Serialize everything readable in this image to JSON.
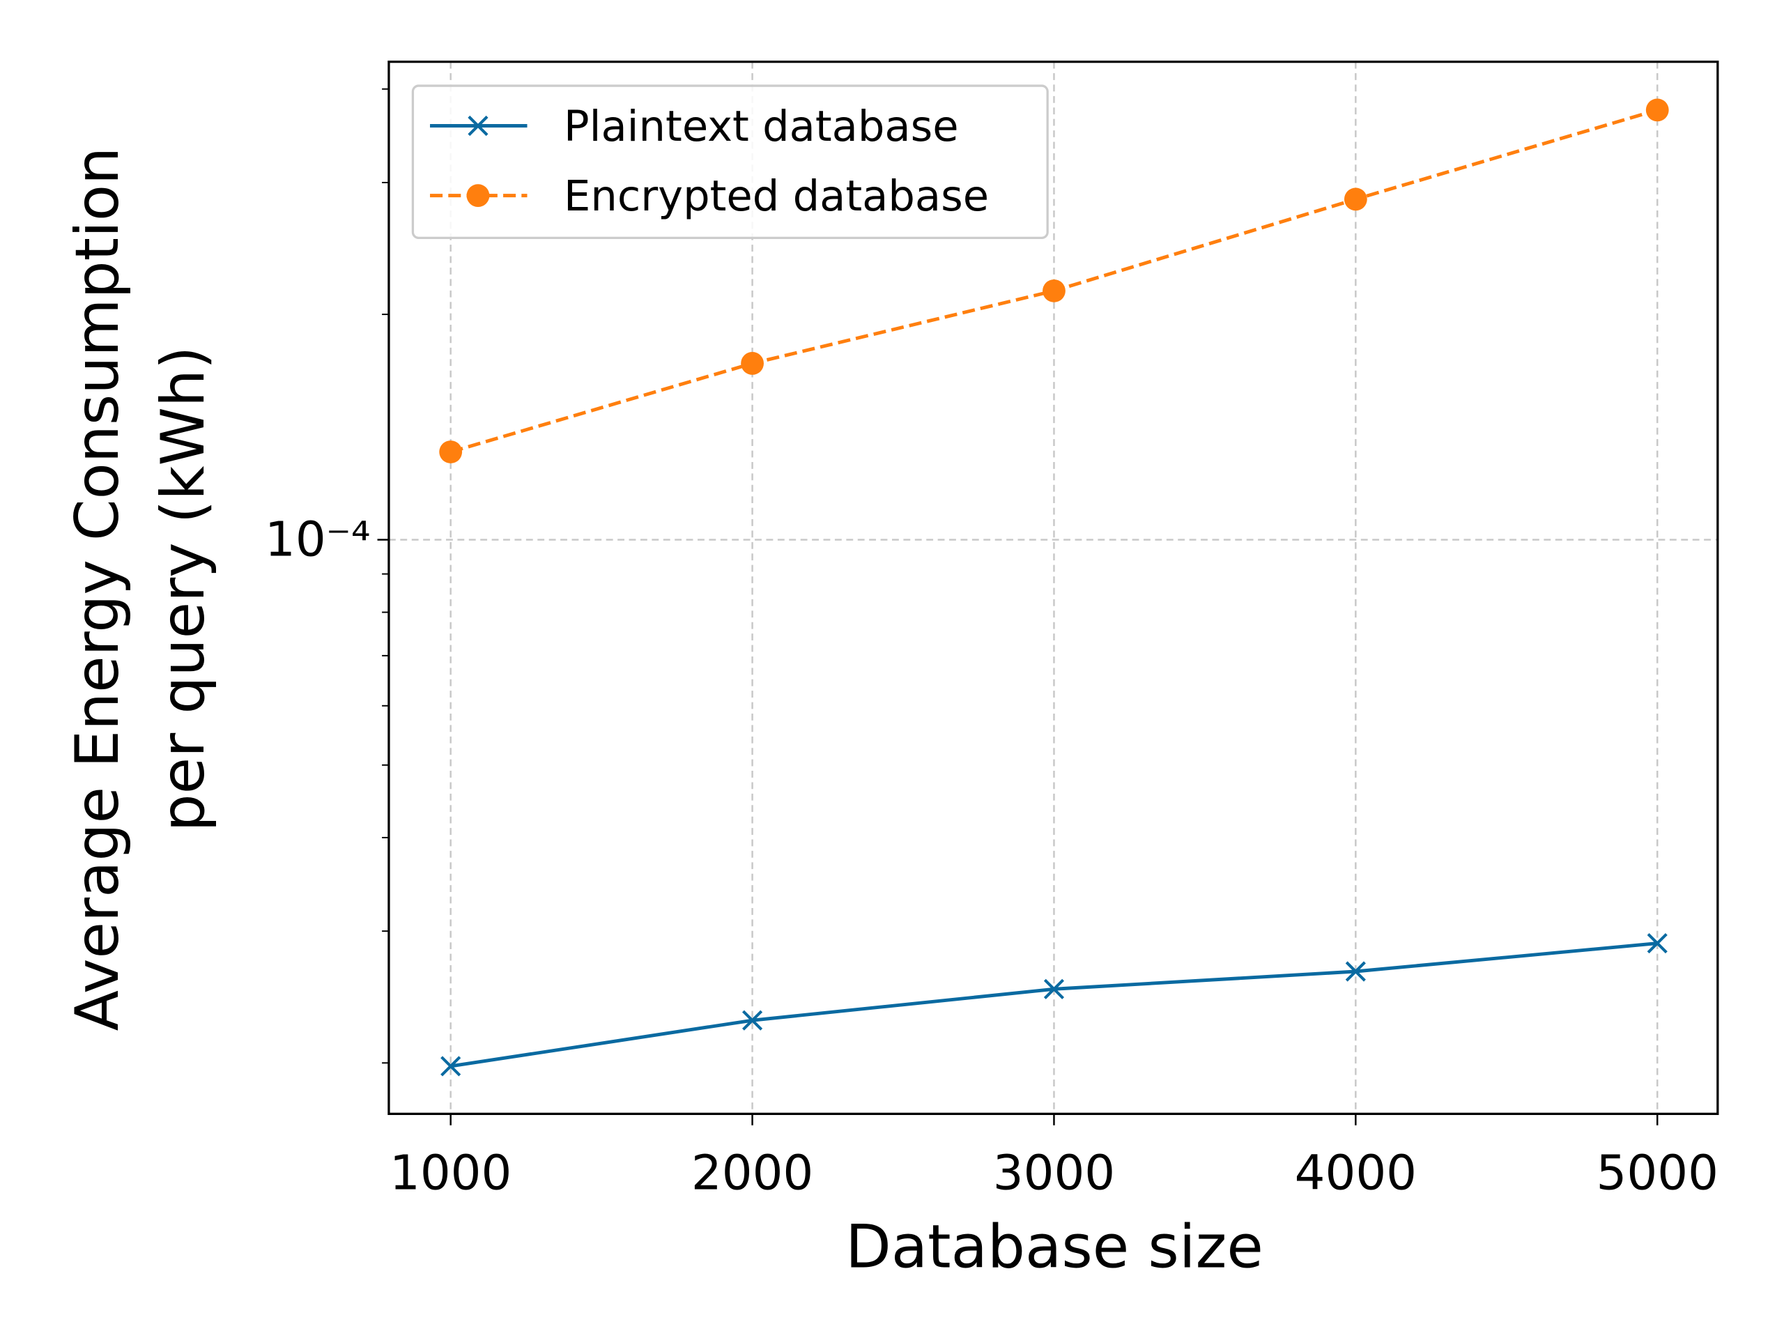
{
  "chart_data": {
    "type": "line",
    "xlabel": "Database size",
    "ylabel": [
      "Average Energy Consumption",
      "per query (kWh)"
    ],
    "x": [
      1000,
      2000,
      3000,
      4000,
      5000
    ],
    "series": [
      {
        "name": "Plaintext database",
        "color": "#0a6aa1",
        "marker": "x",
        "linestyle": "solid",
        "values": [
          1.98e-05,
          2.28e-05,
          2.51e-05,
          2.65e-05,
          2.89e-05
        ]
      },
      {
        "name": "Encrypted database",
        "color": "#ff7f0e",
        "marker": "o",
        "linestyle": "dashed",
        "values": [
          0.000131,
          0.000172,
          0.000215,
          0.000285,
          0.000375
        ]
      }
    ],
    "xlim": [
      795,
      5200
    ],
    "xticks": [
      1000,
      2000,
      3000,
      4000,
      5000
    ],
    "ylim": [
      1.71e-05,
      0.000435
    ],
    "yscale": "log",
    "yticks": [
      {
        "value": 0.0001,
        "label": "10⁻⁴"
      }
    ],
    "yminorticks": [
      2e-05,
      3e-05,
      4e-05,
      5e-05,
      6e-05,
      7e-05,
      8e-05,
      9e-05,
      0.0002,
      0.0003,
      0.0004
    ],
    "grid": true,
    "legend": "upper left"
  }
}
